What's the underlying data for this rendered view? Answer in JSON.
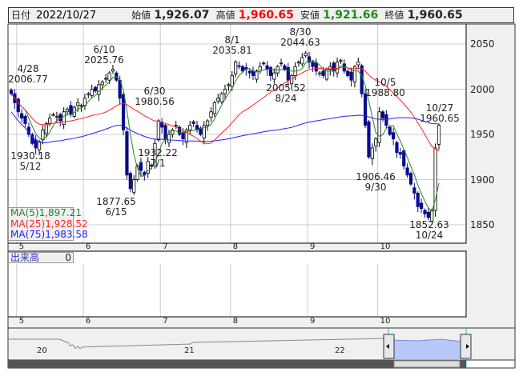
{
  "header": {
    "date_label": "日付",
    "date": "2022/10/27",
    "open_label": "始値",
    "open": "1,926.07",
    "high_label": "高値",
    "high": "1,960.65",
    "low_label": "安値",
    "low": "1,921.66",
    "close_label": "終値",
    "close": "1,960.65"
  },
  "colors": {
    "up": "#ffffff",
    "down": "#0a0a8c",
    "ma5": "#228822",
    "ma25": "#ff2222",
    "ma75": "#2222ff",
    "high_text": "#ff0000",
    "low_text": "#1a8a1a"
  },
  "legend": {
    "ma5_label": "MA(5)",
    "ma5": "1,897.21",
    "ma25_label": "MA(25)",
    "ma25": "1,928.52",
    "ma75_label": "MA(75)",
    "ma75": "1,983.58"
  },
  "volume": {
    "label": "出来高",
    "value": "0"
  },
  "annotations": [
    {
      "date": "4/28",
      "value": "2006.77"
    },
    {
      "date": "5/12",
      "value": "1930.18"
    },
    {
      "date": "6/10",
      "value": "2025.76"
    },
    {
      "date": "6/15",
      "value": "1877.65"
    },
    {
      "date": "6/30",
      "value": "1980.56"
    },
    {
      "date": "7/1",
      "value": "1932.22"
    },
    {
      "date": "8/1",
      "value": "2035.81"
    },
    {
      "date": "8/30",
      "value": "2044.63"
    },
    {
      "date": "8/24",
      "value": "2005.52"
    },
    {
      "date": "10/5",
      "value": "1988.80"
    },
    {
      "date": "9/30",
      "value": "1906.46"
    },
    {
      "date": "10/27",
      "value": "1960.65"
    },
    {
      "date": "10/24",
      "value": "1852.63"
    }
  ],
  "chart_data": {
    "type": "candlestick",
    "y_ticks": [
      "2050",
      "2000",
      "1950",
      "1900",
      "1850"
    ],
    "ylim": [
      1840,
      2065
    ],
    "month_labels": [
      "5",
      "6",
      "7",
      "8",
      "9",
      "10"
    ],
    "month_start_index": [
      2,
      21,
      43,
      63,
      85,
      105
    ],
    "closes": [
      1995,
      1985,
      1975,
      1968,
      1962,
      1950,
      1940,
      1935,
      1942,
      1955,
      1962,
      1968,
      1972,
      1970,
      1965,
      1975,
      1978,
      1972,
      1980,
      1985,
      1982,
      1990,
      1995,
      2000,
      1998,
      2005,
      2008,
      2012,
      2018,
      2022,
      2010,
      1990,
      1955,
      1905,
      1890,
      1900,
      1915,
      1910,
      1905,
      1920,
      1915,
      1940,
      1965,
      1958,
      1945,
      1950,
      1955,
      1960,
      1950,
      1945,
      1955,
      1960,
      1962,
      1955,
      1950,
      1960,
      1965,
      1975,
      1985,
      1990,
      1995,
      2000,
      2005,
      2015,
      2030,
      2025,
      2020,
      2022,
      2018,
      2015,
      2020,
      2025,
      2028,
      2022,
      2015,
      2018,
      2025,
      2028,
      2022,
      2010,
      2015,
      2025,
      2030,
      2035,
      2040,
      2030,
      2025,
      2020,
      2018,
      2015,
      2022,
      2025,
      2020,
      2030,
      2032,
      2020,
      2015,
      2010,
      2025,
      2030,
      1995,
      1960,
      1925,
      1935,
      1945,
      1975,
      1968,
      1960,
      1950,
      1945,
      1930,
      1928,
      1915,
      1905,
      1895,
      1885,
      1870,
      1868,
      1862,
      1858,
      1866,
      1935,
      1960
    ],
    "navigator": {
      "year_labels": [
        "20",
        "21",
        "22"
      ]
    }
  }
}
